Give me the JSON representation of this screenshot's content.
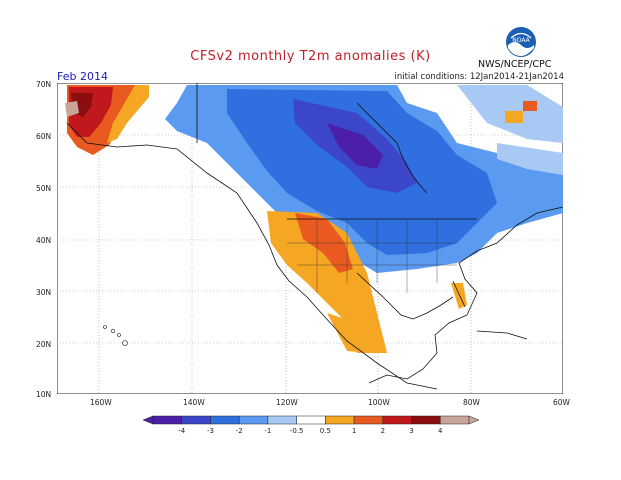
{
  "header": {
    "title": "CFSv2 monthly T2m anomalies (K)",
    "month": "Feb 2014",
    "initial_conditions": "initial conditions: 12Jan2014-21Jan2014",
    "agency": "NWS/NCEP/CPC",
    "logo_icon": "noaa-logo-icon"
  },
  "map": {
    "region": "North America",
    "lat_labels": [
      "70N",
      "60N",
      "50N",
      "40N",
      "30N",
      "20N",
      "10N"
    ],
    "lon_labels": [
      "160W",
      "140W",
      "120W",
      "100W",
      "80W",
      "60W"
    ]
  },
  "legend": {
    "labels": [
      "-4",
      "-3",
      "-2",
      "-1",
      "-0.5",
      "0.5",
      "1",
      "2",
      "3",
      "4"
    ],
    "colors": [
      "#4b1fa8",
      "#3b47c8",
      "#2f6fe0",
      "#5a9af0",
      "#a9c9f5",
      "#ffffff",
      "#f5a623",
      "#e85a20",
      "#c0181c",
      "#8b0d10",
      "#c8a59a"
    ]
  }
}
